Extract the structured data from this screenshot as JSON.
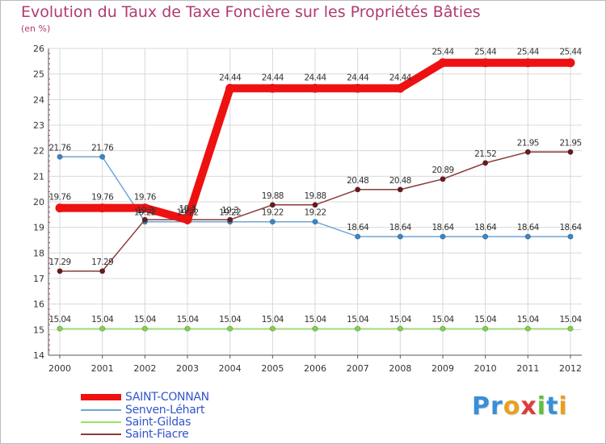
{
  "header": {
    "title": "Evolution du Taux de Taxe Foncière sur les Propriétés Bâties",
    "subtitle": "(en %)"
  },
  "colors": {
    "title": "#b03a70",
    "grid": "#d8d8d8",
    "axis": "#555555",
    "legend_text": "#3355cc"
  },
  "logo": {
    "text": "Proxiti",
    "letters": [
      {
        "ch": "P",
        "color": "#3a8fd6"
      },
      {
        "ch": "r",
        "color": "#3a8fd6"
      },
      {
        "ch": "o",
        "color": "#e8a020"
      },
      {
        "ch": "x",
        "color": "#e03a3a"
      },
      {
        "ch": "i",
        "color": "#5fbf3a"
      },
      {
        "ch": "t",
        "color": "#3a8fd6"
      },
      {
        "ch": "i",
        "color": "#e8a020"
      }
    ]
  },
  "chart_data": {
    "type": "line",
    "title": "Evolution du Taux de Taxe Foncière sur les Propriétés Bâties",
    "ylabel": "(en %)",
    "xlabel": "",
    "ylim": [
      14,
      26
    ],
    "yticks": [
      "14",
      "15",
      "16",
      "17",
      "18",
      "19",
      "20",
      "21",
      "22",
      "23",
      "24",
      "25",
      "26"
    ],
    "categories": [
      "2000",
      "2001",
      "2002",
      "2003",
      "2004",
      "2005",
      "2006",
      "2007",
      "2008",
      "2009",
      "2010",
      "2011",
      "2012"
    ],
    "grid": true,
    "legend_position": "bottom-left",
    "series": [
      {
        "name": "SAINT-CONNAN",
        "color": "#ee1111",
        "values": [
          19.76,
          19.76,
          19.76,
          19.3,
          24.44,
          24.44,
          24.44,
          24.44,
          24.44,
          25.44,
          25.44,
          25.44,
          25.44
        ],
        "labels": [
          "19.76",
          "19.76",
          "19.76",
          "19.3",
          "24.44",
          "24.44",
          "24.44",
          "24.44",
          "24.44",
          "25.44",
          "25.44",
          "25.44",
          "25.44"
        ]
      },
      {
        "name": "Senven-Léhart",
        "color": "#6ea6d6",
        "marker": "#3a86c6",
        "values": [
          21.76,
          21.76,
          19.22,
          19.22,
          19.22,
          19.22,
          19.22,
          18.64,
          18.64,
          18.64,
          18.64,
          18.64,
          18.64
        ],
        "labels": [
          "21.76",
          "21.76",
          "19.22",
          "19.22",
          "19.22",
          "19.22",
          "19.22",
          "18.64",
          "18.64",
          "18.64",
          "18.64",
          "18.64",
          "18.64"
        ]
      },
      {
        "name": "Saint-Gildas",
        "color": "#99e066",
        "marker": "#7fd34a",
        "values": [
          15.04,
          15.04,
          15.04,
          15.04,
          15.04,
          15.04,
          15.04,
          15.04,
          15.04,
          15.04,
          15.04,
          15.04,
          15.04
        ],
        "labels": [
          "15.04",
          "15.04",
          "15.04",
          "15.04",
          "15.04",
          "15.04",
          "15.04",
          "15.04",
          "15.04",
          "15.04",
          "15.04",
          "15.04",
          "15.04"
        ]
      },
      {
        "name": "Saint-Fiacre",
        "color": "#8a3a3a",
        "marker": "#6a1a1a",
        "values": [
          17.29,
          17.29,
          19.3,
          19.3,
          19.3,
          19.88,
          19.88,
          20.48,
          20.48,
          20.89,
          21.52,
          21.95,
          21.95
        ],
        "labels": [
          "17.29",
          "17.29",
          "19.3",
          "19.3",
          "19.3",
          "19.88",
          "19.88",
          "20.48",
          "20.48",
          "20.89",
          "21.52",
          "21.95",
          "21.95"
        ]
      }
    ]
  }
}
